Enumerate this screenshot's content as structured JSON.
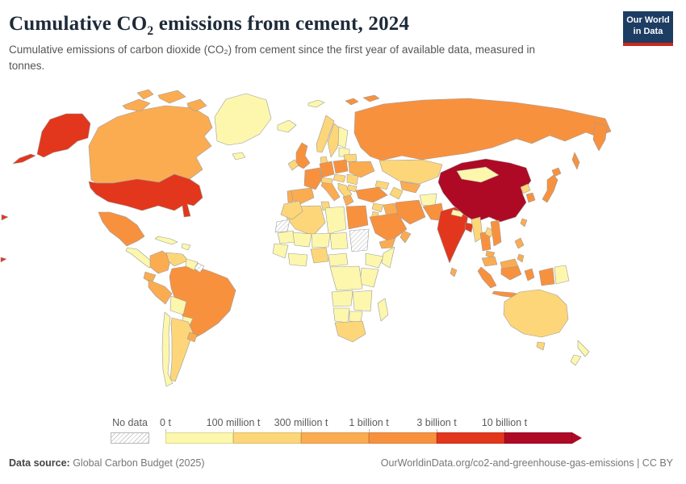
{
  "header": {
    "title_pre": "Cumulative CO",
    "title_sub": "2",
    "title_post": " emissions from cement, 2024",
    "subtitle": "Cumulative emissions of carbon dioxide (CO₂) from cement since the first year of available data, measured in tonnes.",
    "logo": {
      "line1": "Our World",
      "line2": "in Data",
      "bg": "#1d3d63",
      "accent": "#ce261b"
    }
  },
  "legend": {
    "no_data_label": "No data",
    "tick_labels": [
      "0 t",
      "100 million t",
      "300 million t",
      "1 billion t",
      "3 billion t",
      "10 billion t"
    ],
    "colors": [
      "#FCF7AC",
      "#FDD679",
      "#FBAC51",
      "#F8913E",
      "#E2371D",
      "#AE0A26"
    ]
  },
  "footer": {
    "source_label": "Data source:",
    "source_value": " Global Carbon Budget (2025)",
    "right": "OurWorldinData.org/co2-and-greenhouse-gas-emissions | CC BY"
  },
  "chart_data": {
    "type": "choropleth",
    "title": "Cumulative CO₂ emissions from cement, 2024",
    "unit": "tonnes",
    "bin_edges": [
      "0 t",
      "100 million t",
      "300 million t",
      "1 billion t",
      "3 billion t",
      "10 billion t"
    ],
    "bin_colors": [
      "#FCF7AC",
      "#FDD679",
      "#FBAC51",
      "#F8913E",
      "#E2371D",
      "#AE0A26"
    ],
    "no_data_style": "gray-diagonal-hatch",
    "country_bins": {
      "united-states": 5,
      "canada": 3,
      "greenland": 1,
      "mexico": 4,
      "central-america": 1,
      "cuba": 1,
      "hispaniola": 1,
      "colombia": 3,
      "venezuela": 2,
      "guyana-suriname": 1,
      "french-guiana": 0,
      "brazil": 4,
      "ecuador": 3,
      "peru": 3,
      "bolivia": 1,
      "paraguay": 1,
      "chile": 1,
      "argentina": 2,
      "uruguay": 3,
      "iceland": 1,
      "svalbard": 1,
      "united-kingdom": 4,
      "ireland": 2,
      "norway": 2,
      "sweden": 2,
      "finland": 1,
      "denmark": 2,
      "baltics": 1,
      "belarus": 2,
      "germany": 4,
      "france": 4,
      "spain": 3,
      "portugal": 3,
      "italy": 3,
      "switzerland-austria": 2,
      "poland": 4,
      "czech-hungary": 2,
      "balkans": 2,
      "greece": 3,
      "romania": 2,
      "bulgaria": 2,
      "ukraine": 3,
      "russia": 4,
      "turkey": 4,
      "caucasus": 2,
      "syria": 2,
      "iraq": 3,
      "jordan-israel": 2,
      "saudi-arabia": 4,
      "yemen": 3,
      "oman": 3,
      "iran": 4,
      "kazakhstan": 2,
      "uzbekistan": 3,
      "turkmenistan": 2,
      "afghanistan": 1,
      "pakistan": 4,
      "china": 6,
      "mongolia": 1,
      "india": 5,
      "nepal": 1,
      "bangladesh": 5,
      "sri-lanka": 3,
      "myanmar": 2,
      "thailand": 4,
      "laos": 2,
      "vietnam": 4,
      "cambodia": 3,
      "malaysia": 3,
      "north-korea": 2,
      "south-korea": 4,
      "japan": 4,
      "taiwan": 3,
      "philippines": 3,
      "indonesia": 4,
      "papua-new-guinea": 1,
      "australia": 2,
      "new-zealand": 1,
      "algeria": 2,
      "morocco": 2,
      "western-sahara": 0,
      "tunisia": 2,
      "libya": 1,
      "egypt": 4,
      "mauritania": 1,
      "mali": 1,
      "niger": 1,
      "chad": 1,
      "sudan": 0,
      "senegal-guinea": 1,
      "ivory-ghana": 1,
      "nigeria": 2,
      "cameroon-car": 1,
      "ethiopia": 1,
      "somalia": 1,
      "kenya-tanzania": 1,
      "drc": 1,
      "angola": 1,
      "zambia-mozambique": 1,
      "namibia": 1,
      "botswana": 1,
      "south-africa": 2,
      "madagascar": 1
    }
  }
}
